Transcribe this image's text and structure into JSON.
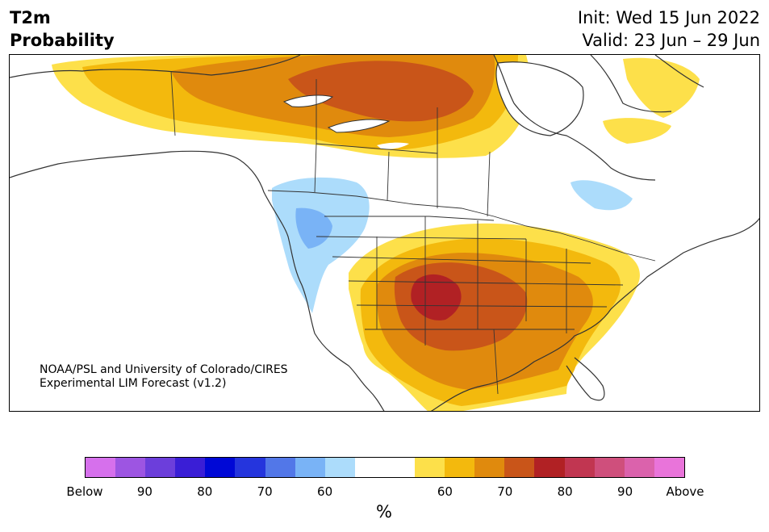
{
  "title": {
    "line1": "T2m",
    "line2": "Probability"
  },
  "dates": {
    "init": "Init: Wed 15 Jun 2022",
    "valid": "Valid: 23 Jun – 29 Jun"
  },
  "credit": {
    "line1": "NOAA/PSL and University of Colorado/CIRES",
    "line2": "Experimental LIM Forecast (v1.2)"
  },
  "map": {
    "region": "North America",
    "colors": {
      "land_outline": "#333333",
      "above_60": "#fde04a",
      "above_65": "#f3b90d",
      "above_70": "#e08a0d",
      "above_75": "#c95519",
      "above_80": "#b12124",
      "below_60": "#acdcfb",
      "below_65": "#79b3f6"
    }
  },
  "colorbar": {
    "colors": [
      "#d670ec",
      "#9d55e2",
      "#6c3edb",
      "#3a1ed6",
      "#0008d6",
      "#2535dd",
      "#5277e8",
      "#79b3f6",
      "#acdcfb",
      "#ffffff",
      "#ffffff",
      "#fde04a",
      "#f3b90d",
      "#e08a0d",
      "#c95519",
      "#b12124",
      "#c13651",
      "#cf4f7c",
      "#db62ac",
      "#e974da"
    ],
    "tick_labels": [
      "Below",
      "90",
      "80",
      "70",
      "60",
      "60",
      "70",
      "80",
      "90",
      "Above"
    ],
    "unit": "%"
  }
}
